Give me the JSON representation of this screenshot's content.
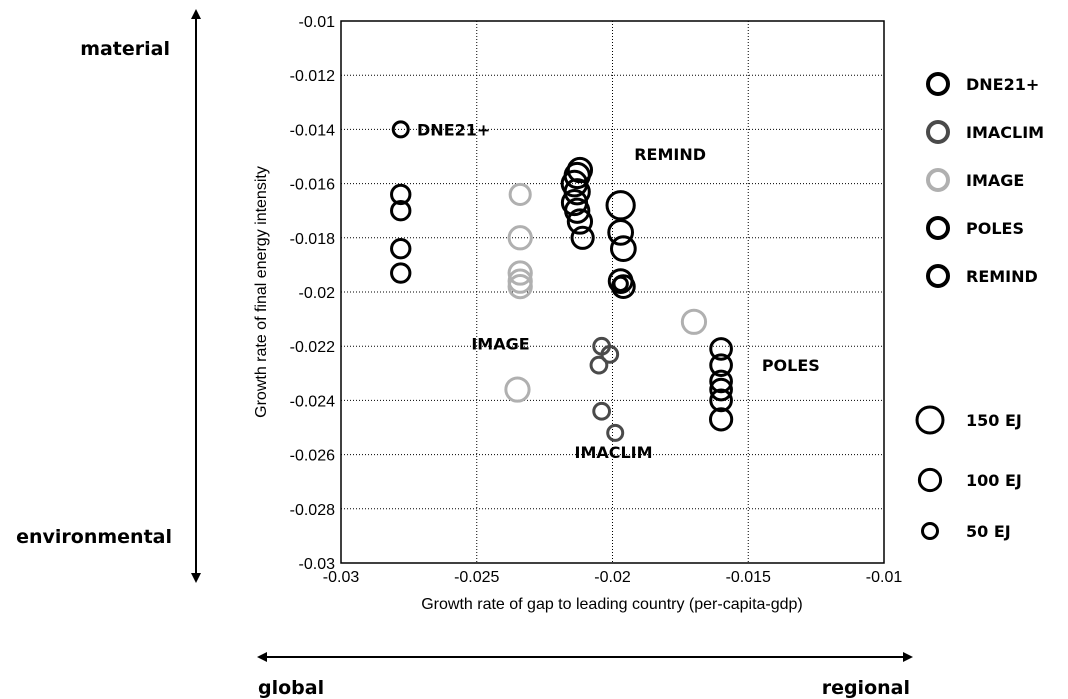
{
  "chart_data": {
    "type": "scatter",
    "title": "",
    "xlabel": "Growth rate of gap to leading country (per-capita-gdp)",
    "ylabel": "Growth rate of final energy intensity",
    "xlim": [
      -0.03,
      -0.01
    ],
    "ylim": [
      -0.03,
      -0.01
    ],
    "x_ticks": [
      "-0.03",
      "-0.025",
      "-0.02",
      "-0.015",
      "-0.01"
    ],
    "y_ticks": [
      "-0.01",
      "-0.012",
      "-0.014",
      "-0.016",
      "-0.018",
      "-0.02",
      "-0.022",
      "-0.024",
      "-0.026",
      "-0.028",
      "-0.03"
    ],
    "grid": true,
    "legend_position": "right",
    "series": [
      {
        "name": "DNE21+",
        "color": "#000000",
        "label": "DNE21+",
        "points": [
          {
            "x": -0.0278,
            "y": -0.014,
            "size_ej": 50
          },
          {
            "x": -0.0278,
            "y": -0.0164,
            "size_ej": 75
          },
          {
            "x": -0.0278,
            "y": -0.017,
            "size_ej": 75
          },
          {
            "x": -0.0278,
            "y": -0.0184,
            "size_ej": 75
          },
          {
            "x": -0.0278,
            "y": -0.0193,
            "size_ej": 75
          }
        ]
      },
      {
        "name": "IMACLIM",
        "color": "#4a4a4a",
        "label": "IMACLIM",
        "points": [
          {
            "x": -0.0204,
            "y": -0.022,
            "size_ej": 55
          },
          {
            "x": -0.0201,
            "y": -0.0223,
            "size_ej": 55
          },
          {
            "x": -0.0205,
            "y": -0.0227,
            "size_ej": 55
          },
          {
            "x": -0.0204,
            "y": -0.0244,
            "size_ej": 55
          },
          {
            "x": -0.0199,
            "y": -0.0252,
            "size_ej": 50
          }
        ]
      },
      {
        "name": "IMAGE",
        "color": "#b0b0b0",
        "label": "IMAGE",
        "points": [
          {
            "x": -0.0234,
            "y": -0.0164,
            "size_ej": 90
          },
          {
            "x": -0.0234,
            "y": -0.018,
            "size_ej": 110
          },
          {
            "x": -0.0234,
            "y": -0.0193,
            "size_ej": 110
          },
          {
            "x": -0.0234,
            "y": -0.0196,
            "size_ej": 110
          },
          {
            "x": -0.0234,
            "y": -0.0198,
            "size_ej": 110
          },
          {
            "x": -0.0235,
            "y": -0.0236,
            "size_ej": 120
          },
          {
            "x": -0.017,
            "y": -0.0211,
            "size_ej": 120
          }
        ]
      },
      {
        "name": "POLES",
        "color": "#000000",
        "label": "POLES",
        "points": [
          {
            "x": -0.016,
            "y": -0.0221,
            "size_ej": 95
          },
          {
            "x": -0.016,
            "y": -0.0227,
            "size_ej": 95
          },
          {
            "x": -0.016,
            "y": -0.0233,
            "size_ej": 95
          },
          {
            "x": -0.016,
            "y": -0.0236,
            "size_ej": 95
          },
          {
            "x": -0.016,
            "y": -0.024,
            "size_ej": 95
          },
          {
            "x": -0.016,
            "y": -0.0247,
            "size_ej": 100
          }
        ]
      },
      {
        "name": "REMIND",
        "color": "#000000",
        "label": "REMIND",
        "points": [
          {
            "x": -0.0212,
            "y": -0.0155,
            "size_ej": 120
          },
          {
            "x": -0.0213,
            "y": -0.0157,
            "size_ej": 130
          },
          {
            "x": -0.0214,
            "y": -0.016,
            "size_ej": 135
          },
          {
            "x": -0.0213,
            "y": -0.0163,
            "size_ej": 130
          },
          {
            "x": -0.0214,
            "y": -0.0167,
            "size_ej": 130
          },
          {
            "x": -0.0213,
            "y": -0.017,
            "size_ej": 120
          },
          {
            "x": -0.0212,
            "y": -0.0174,
            "size_ej": 120
          },
          {
            "x": -0.0211,
            "y": -0.018,
            "size_ej": 100
          },
          {
            "x": -0.0197,
            "y": -0.0168,
            "size_ej": 165
          },
          {
            "x": -0.0197,
            "y": -0.0178,
            "size_ej": 125
          },
          {
            "x": -0.0196,
            "y": -0.0184,
            "size_ej": 125
          },
          {
            "x": -0.0197,
            "y": -0.0196,
            "size_ej": 115
          },
          {
            "x": -0.0196,
            "y": -0.0198,
            "size_ej": 105
          },
          {
            "x": -0.0197,
            "y": -0.0197,
            "size_ej": 40
          }
        ]
      }
    ],
    "size_legend": [
      {
        "label": "150 EJ",
        "size_ej": 150
      },
      {
        "label": "100 EJ",
        "size_ej": 100
      },
      {
        "label": "50 EJ",
        "size_ej": 50
      }
    ],
    "annotations": [
      {
        "text": "DNE21+",
        "x": -0.0272,
        "y": -0.014
      },
      {
        "text": "REMIND",
        "x": -0.0192,
        "y": -0.0149
      },
      {
        "text": "IMAGE",
        "x": -0.0252,
        "y": -0.0219
      },
      {
        "text": "POLES",
        "x": -0.0145,
        "y": -0.0227
      },
      {
        "text": "IMACLIM",
        "x": -0.0214,
        "y": -0.0259
      }
    ]
  },
  "outer_labels": {
    "top_left": "material",
    "bottom_left": "environmental",
    "bottom_left_axis": "global",
    "bottom_right_axis": "regional"
  }
}
